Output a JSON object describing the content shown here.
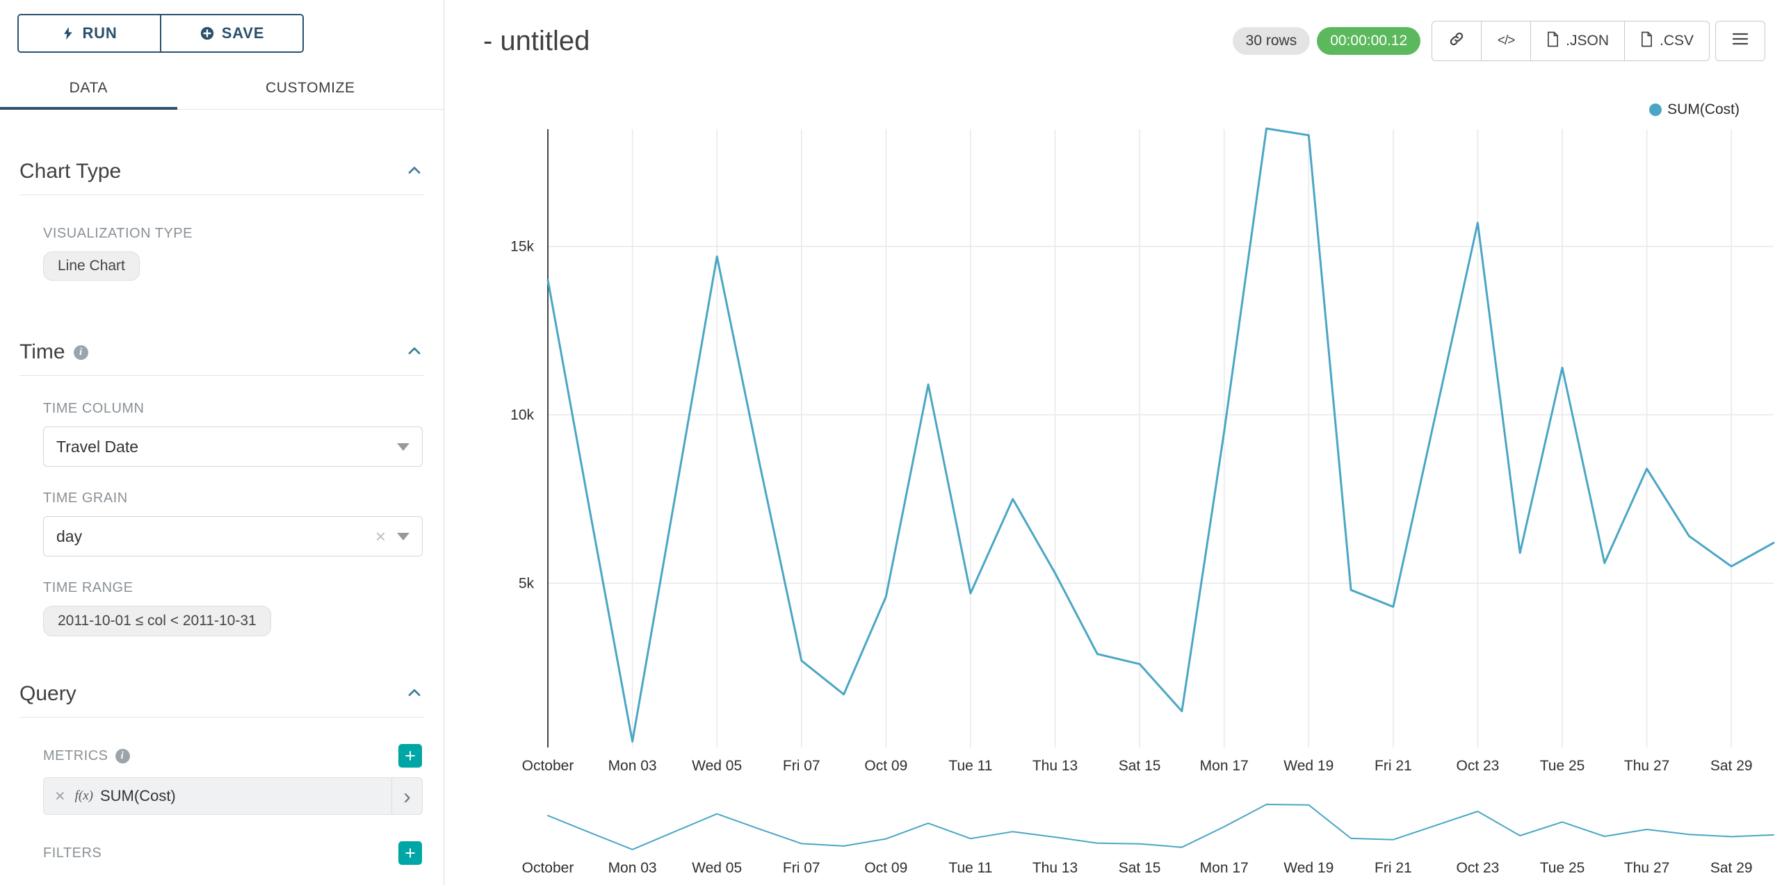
{
  "colors": {
    "line": "#4aa6c4",
    "navy": "#29506d",
    "teal": "#00a6a6",
    "green": "#5cb85c",
    "chevron": "#447e9b",
    "grid": "#e8e8e8",
    "axis": "#2f2f2f"
  },
  "sidebar": {
    "run_label": "RUN",
    "save_label": "SAVE",
    "tabs": [
      {
        "label": "DATA",
        "active": true
      },
      {
        "label": "CUSTOMIZE",
        "active": false
      }
    ],
    "chart_type": {
      "title": "Chart Type",
      "viz_type_label": "VISUALIZATION TYPE",
      "viz_type_value": "Line Chart"
    },
    "time": {
      "title": "Time",
      "time_column_label": "TIME COLUMN",
      "time_column_value": "Travel Date",
      "time_grain_label": "TIME GRAIN",
      "time_grain_value": "day",
      "time_range_label": "TIME RANGE",
      "time_range_value": "2011-10-01 ≤ col < 2011-10-31"
    },
    "query": {
      "title": "Query",
      "metrics_label": "METRICS",
      "metric_fx": "f(x)",
      "metric_value": "SUM(Cost)",
      "filters_label": "FILTERS"
    }
  },
  "header": {
    "title": "- untitled",
    "rows_badge": "30 rows",
    "timer_badge": "00:00:00.12",
    "json_label": ".JSON",
    "csv_label": ".CSV"
  },
  "legend": {
    "label": "SUM(Cost)"
  },
  "chart_data": {
    "type": "line",
    "title": "- untitled",
    "xlabel": "",
    "ylabel": "",
    "ylim": [
      0,
      18500
    ],
    "grid": true,
    "legend_position": "top-right",
    "x": [
      "2011-10-01",
      "2011-10-02",
      "2011-10-03",
      "2011-10-04",
      "2011-10-05",
      "2011-10-06",
      "2011-10-07",
      "2011-10-08",
      "2011-10-09",
      "2011-10-10",
      "2011-10-11",
      "2011-10-12",
      "2011-10-13",
      "2011-10-14",
      "2011-10-15",
      "2011-10-16",
      "2011-10-17",
      "2011-10-18",
      "2011-10-19",
      "2011-10-20",
      "2011-10-21",
      "2011-10-22",
      "2011-10-23",
      "2011-10-24",
      "2011-10-25",
      "2011-10-26",
      "2011-10-27",
      "2011-10-28",
      "2011-10-29",
      "2011-10-30"
    ],
    "series": [
      {
        "name": "SUM(Cost)",
        "values": [
          14000,
          7100,
          300,
          7500,
          14700,
          8600,
          2700,
          1700,
          4600,
          10900,
          4700,
          7500,
          5300,
          2900,
          2600,
          1200,
          9500,
          18500,
          18300,
          4800,
          4300,
          10000,
          15700,
          5900,
          11400,
          5600,
          8400,
          6400,
          5500,
          6200
        ]
      }
    ],
    "x_ticks": [
      {
        "day": 1,
        "label": "October"
      },
      {
        "day": 3,
        "label": "Mon 03"
      },
      {
        "day": 5,
        "label": "Wed 05"
      },
      {
        "day": 7,
        "label": "Fri 07"
      },
      {
        "day": 9,
        "label": "Oct 09"
      },
      {
        "day": 11,
        "label": "Tue 11"
      },
      {
        "day": 13,
        "label": "Thu 13"
      },
      {
        "day": 15,
        "label": "Sat 15"
      },
      {
        "day": 17,
        "label": "Mon 17"
      },
      {
        "day": 19,
        "label": "Wed 19"
      },
      {
        "day": 21,
        "label": "Fri 21"
      },
      {
        "day": 23,
        "label": "Oct 23"
      },
      {
        "day": 25,
        "label": "Tue 25"
      },
      {
        "day": 27,
        "label": "Thu 27"
      },
      {
        "day": 29,
        "label": "Sat 29"
      }
    ],
    "y_ticks": [
      {
        "value": 5000,
        "label": "5k"
      },
      {
        "value": 10000,
        "label": "10k"
      },
      {
        "value": 15000,
        "label": "15k"
      }
    ]
  }
}
